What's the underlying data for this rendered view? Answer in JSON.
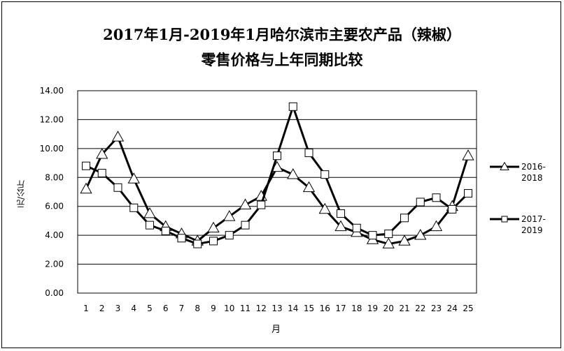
{
  "chart_data": {
    "type": "line",
    "title": "2017年1月-2019年1月哈尔滨市主要农产品（辣椒）",
    "subtitle": "零售价格与上年同期比较",
    "xlabel": "月",
    "ylabel": "元/公斤",
    "ylim": [
      0,
      14
    ],
    "yticks": [
      "0.00",
      "2.00",
      "4.00",
      "6.00",
      "8.00",
      "10.00",
      "12.00",
      "14.00"
    ],
    "grid": true,
    "legend_position": "right",
    "categories": [
      "1",
      "2",
      "3",
      "4",
      "5",
      "6",
      "7",
      "8",
      "9",
      "10",
      "11",
      "12",
      "13",
      "14",
      "15",
      "16",
      "17",
      "18",
      "19",
      "20",
      "21",
      "22",
      "23",
      "24",
      "25"
    ],
    "series": [
      {
        "name": "2016-2018",
        "marker": "triangle",
        "values": [
          7.2,
          9.6,
          10.8,
          7.9,
          5.5,
          4.6,
          4.1,
          3.6,
          4.5,
          5.3,
          6.1,
          6.7,
          8.7,
          8.2,
          7.3,
          5.8,
          4.6,
          4.2,
          3.7,
          3.4,
          3.6,
          4.0,
          4.6,
          6.0,
          9.5
        ]
      },
      {
        "name": "2017-2019",
        "marker": "square",
        "values": [
          8.8,
          8.3,
          7.3,
          5.9,
          4.7,
          4.3,
          3.8,
          3.4,
          3.6,
          4.0,
          4.7,
          6.1,
          9.5,
          12.9,
          9.7,
          8.2,
          5.5,
          4.5,
          4.0,
          4.1,
          5.2,
          6.3,
          6.6,
          5.8,
          6.9
        ]
      }
    ],
    "legend": [
      {
        "line1": "2016-",
        "line2": "2018"
      },
      {
        "line1": "2017-",
        "line2": "2019"
      }
    ],
    "colors": {
      "line": "#000000",
      "grid": "#000000",
      "marker_fill": "#ffffff"
    }
  }
}
